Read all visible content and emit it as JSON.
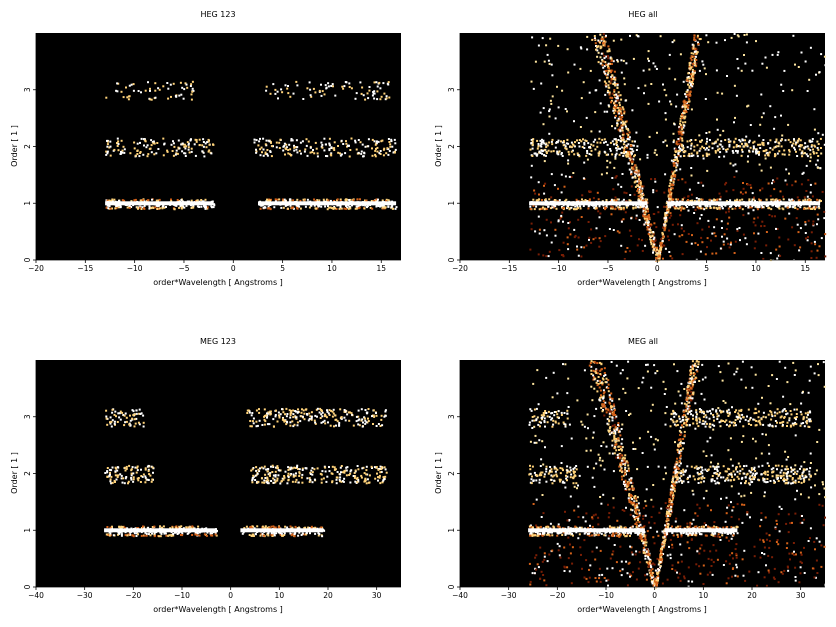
{
  "colors": {
    "background": "#000000",
    "low": "#7a1e05",
    "mid": "#d4621a",
    "high": "#ffd37a",
    "max": "#ffffff"
  },
  "chart_data": [
    {
      "type": "heatmap",
      "title": "HEG 123",
      "xlabel": "order*Wavelength [ Angstroms ]",
      "ylabel": "Order [ 1 ]",
      "xlim": [
        -20,
        17
      ],
      "ylim": [
        0,
        4
      ],
      "xticks": [
        "-20",
        "-15",
        "-10",
        "-5",
        "0",
        "5",
        "10",
        "15"
      ],
      "yticks": [
        "0",
        "1",
        "2",
        "3"
      ],
      "bands": [
        {
          "order": 1,
          "ranges": [
            [
              -13,
              -2
            ],
            [
              2.5,
              16.5
            ]
          ],
          "intensity": 1.0
        },
        {
          "order": 2,
          "ranges": [
            [
              -13,
              -2
            ],
            [
              2,
              16.5
            ]
          ],
          "intensity": 0.35
        },
        {
          "order": 3,
          "ranges": [
            [
              -13,
              -4
            ],
            [
              3,
              16
            ]
          ],
          "intensity": 0.12
        }
      ],
      "dispersion_wedge": false,
      "background_region": null
    },
    {
      "type": "heatmap",
      "title": "HEG all",
      "xlabel": "order*Wavelength [ Angstroms ]",
      "ylabel": "Order [ 1 ]",
      "xlim": [
        -20,
        17
      ],
      "ylim": [
        0,
        4
      ],
      "xticks": [
        "-20",
        "-15",
        "-10",
        "-5",
        "0",
        "5",
        "10",
        "15"
      ],
      "yticks": [
        "0",
        "1",
        "2",
        "3"
      ],
      "bands": [
        {
          "order": 1,
          "ranges": [
            [
              -13,
              -1
            ],
            [
              1,
              16.5
            ]
          ],
          "intensity": 1.0
        },
        {
          "order": 2,
          "ranges": [
            [
              -13,
              -2
            ],
            [
              2,
              16.5
            ]
          ],
          "intensity": 0.45
        }
      ],
      "dispersion_wedge": true,
      "background_region": [
        -13,
        17
      ]
    },
    {
      "type": "heatmap",
      "title": "MEG 123",
      "xlabel": "order*Wavelength [ Angstroms ]",
      "ylabel": "Order [ 1 ]",
      "xlim": [
        -40,
        35
      ],
      "ylim": [
        0,
        4
      ],
      "xticks": [
        "-40",
        "-30",
        "-20",
        "-10",
        "0",
        "10",
        "20",
        "30"
      ],
      "yticks": [
        "0",
        "1",
        "2",
        "3"
      ],
      "bands": [
        {
          "order": 1,
          "ranges": [
            [
              -26,
              -3
            ],
            [
              2,
              19
            ]
          ],
          "intensity": 1.0
        },
        {
          "order": 2,
          "ranges": [
            [
              -26,
              -16
            ],
            [
              4,
              32
            ]
          ],
          "intensity": 0.55
        },
        {
          "order": 3,
          "ranges": [
            [
              -26,
              -18
            ],
            [
              3,
              32
            ]
          ],
          "intensity": 0.45
        }
      ],
      "dispersion_wedge": false,
      "background_region": null
    },
    {
      "type": "heatmap",
      "title": "MEG all",
      "xlabel": "order*Wavelength [ Angstroms ]",
      "ylabel": "Order [ 1 ]",
      "xlim": [
        -40,
        35
      ],
      "ylim": [
        0,
        4
      ],
      "xticks": [
        "-40",
        "-30",
        "-20",
        "-10",
        "0",
        "10",
        "20",
        "30"
      ],
      "yticks": [
        "0",
        "1",
        "2",
        "3"
      ],
      "bands": [
        {
          "order": 1,
          "ranges": [
            [
              -26,
              -2
            ],
            [
              2,
              17
            ]
          ],
          "intensity": 1.0
        },
        {
          "order": 2,
          "ranges": [
            [
              -26,
              -16
            ],
            [
              4,
              32
            ]
          ],
          "intensity": 0.55
        },
        {
          "order": 3,
          "ranges": [
            [
              -26,
              -18
            ],
            [
              3,
              32
            ]
          ],
          "intensity": 0.45
        }
      ],
      "dispersion_wedge": true,
      "background_region": [
        -26,
        35
      ]
    }
  ]
}
